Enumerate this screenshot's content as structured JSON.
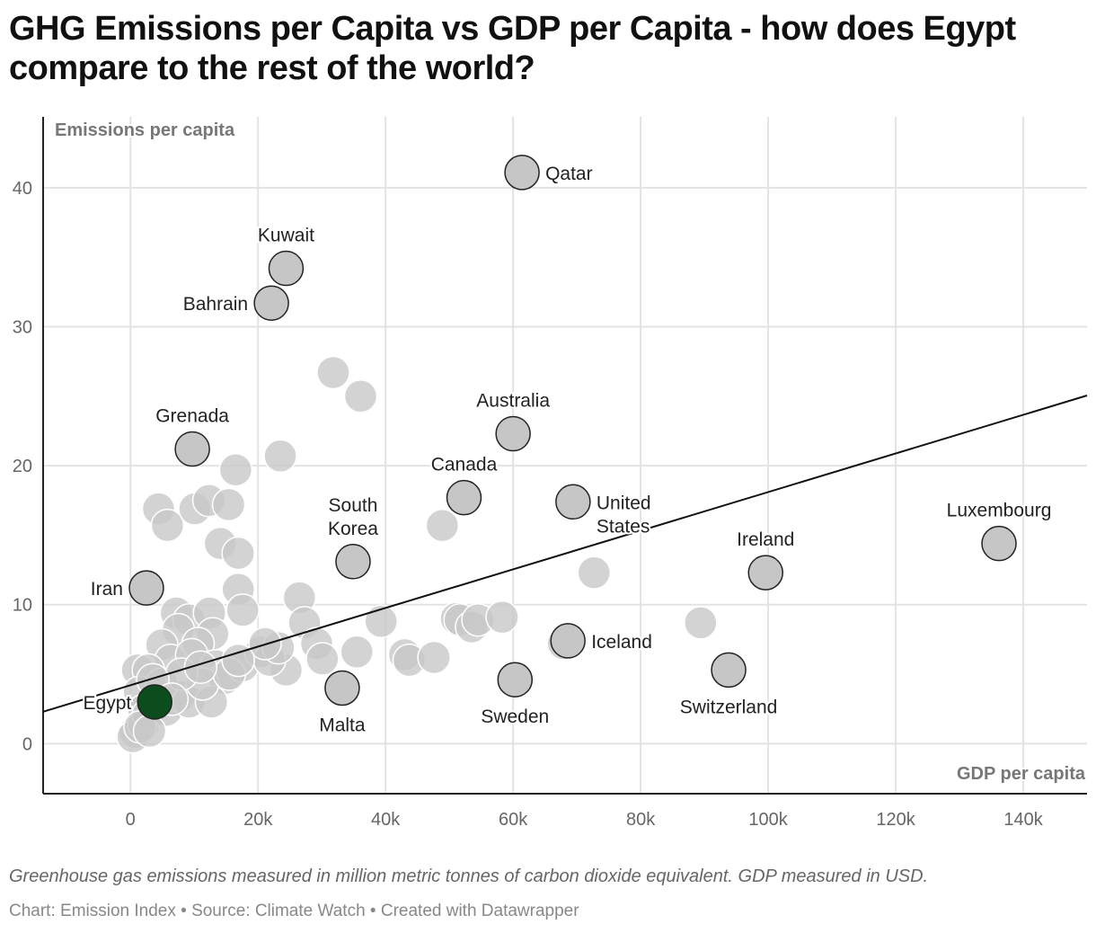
{
  "title": "GHG Emissions per Capita vs GDP per Capita - how does Egypt compare to the rest of the world?",
  "notes": "Greenhouse gas emissions measured in million metric tonnes of carbon dioxide equivalent. GDP measured in USD.",
  "byline": "Chart: Emission Index • Source: Climate Watch • Created with Datawrapper",
  "chart_data": {
    "type": "scatter",
    "xlabel": "GDP per capita",
    "ylabel": "Emissions per capita",
    "xlim": [
      -13700,
      150000
    ],
    "ylim": [
      -3.6,
      45.1
    ],
    "xticks": [
      0,
      20000,
      40000,
      60000,
      80000,
      100000,
      120000,
      140000
    ],
    "xtick_labels": [
      "0",
      "20k",
      "40k",
      "60k",
      "80k",
      "100k",
      "120k",
      "140k"
    ],
    "yticks": [
      0,
      10,
      20,
      30,
      40
    ],
    "ytick_labels": [
      "0",
      "10",
      "20",
      "30",
      "40"
    ],
    "grid": true,
    "trendline": {
      "x": [
        -13700,
        150000
      ],
      "y": [
        2.3,
        25.05
      ]
    },
    "colors": {
      "highlight": "#0b4d1c",
      "labeled": "#c6c6c6",
      "other": "#c8c8c8"
    },
    "labeled_points": [
      {
        "name": "Qatar",
        "x": 61400,
        "y": 41.1
      },
      {
        "name": "Kuwait",
        "x": 24400,
        "y": 34.2
      },
      {
        "name": "Bahrain",
        "x": 22100,
        "y": 31.7
      },
      {
        "name": "Grenada",
        "x": 9700,
        "y": 21.2
      },
      {
        "name": "Australia",
        "x": 60000,
        "y": 22.3
      },
      {
        "name": "Canada",
        "x": 52300,
        "y": 17.7
      },
      {
        "name": "United States",
        "x": 69400,
        "y": 17.4
      },
      {
        "name": "South Korea",
        "x": 34900,
        "y": 13.1
      },
      {
        "name": "Luxembourg",
        "x": 136200,
        "y": 14.4
      },
      {
        "name": "Ireland",
        "x": 99600,
        "y": 12.3
      },
      {
        "name": "Iran",
        "x": 2500,
        "y": 11.2
      },
      {
        "name": "Iceland",
        "x": 68600,
        "y": 7.4
      },
      {
        "name": "Switzerland",
        "x": 93800,
        "y": 5.3
      },
      {
        "name": "Sweden",
        "x": 60300,
        "y": 4.6
      },
      {
        "name": "Malta",
        "x": 33200,
        "y": 4.0
      },
      {
        "name": "Egypt",
        "x": 3800,
        "y": 3.0,
        "highlight": true
      }
    ],
    "other_points": [
      [
        31800,
        26.7
      ],
      [
        36100,
        25.0
      ],
      [
        23500,
        20.7
      ],
      [
        16500,
        19.7
      ],
      [
        4400,
        16.9
      ],
      [
        5800,
        15.7
      ],
      [
        10100,
        16.9
      ],
      [
        12300,
        17.5
      ],
      [
        15400,
        17.2
      ],
      [
        14100,
        14.4
      ],
      [
        16900,
        13.7
      ],
      [
        16900,
        11.1
      ],
      [
        17600,
        9.6
      ],
      [
        48900,
        15.7
      ],
      [
        72700,
        12.3
      ],
      [
        26500,
        10.5
      ],
      [
        27300,
        8.7
      ],
      [
        39300,
        8.8
      ],
      [
        29200,
        7.2
      ],
      [
        30100,
        6.1
      ],
      [
        35500,
        6.6
      ],
      [
        24400,
        5.3
      ],
      [
        43000,
        6.4
      ],
      [
        43700,
        6.0
      ],
      [
        47600,
        6.2
      ],
      [
        51100,
        9.0
      ],
      [
        51700,
        8.9
      ],
      [
        53500,
        8.4
      ],
      [
        54500,
        8.9
      ],
      [
        58300,
        9.1
      ],
      [
        67900,
        7.2
      ],
      [
        89400,
        8.7
      ],
      [
        7200,
        9.4
      ],
      [
        9200,
        8.9
      ],
      [
        12400,
        9.4
      ],
      [
        12900,
        7.9
      ],
      [
        7500,
        8.2
      ],
      [
        10600,
        7.2
      ],
      [
        4900,
        7.1
      ],
      [
        6300,
        6.0
      ],
      [
        9600,
        6.4
      ],
      [
        13400,
        5.6
      ],
      [
        14800,
        4.7
      ],
      [
        17600,
        5.6
      ],
      [
        20400,
        6.6
      ],
      [
        21800,
        6.0
      ],
      [
        23200,
        6.9
      ],
      [
        21100,
        7.2
      ],
      [
        1100,
        5.3
      ],
      [
        2800,
        5.3
      ],
      [
        1400,
        3.7
      ],
      [
        2100,
        2.4
      ],
      [
        700,
        0.8
      ],
      [
        400,
        0.5
      ],
      [
        2100,
        1.4
      ],
      [
        2800,
        2.1
      ],
      [
        5600,
        2.4
      ],
      [
        7700,
        3.4
      ],
      [
        9200,
        3.0
      ],
      [
        12700,
        3.0
      ],
      [
        11300,
        4.3
      ],
      [
        4900,
        4.3
      ],
      [
        15500,
        5.0
      ],
      [
        16900,
        6.0
      ],
      [
        8000,
        5.0
      ],
      [
        11000,
        5.5
      ],
      [
        3500,
        4.6
      ],
      [
        6500,
        3.2
      ],
      [
        1500,
        1.2
      ],
      [
        3000,
        0.9
      ]
    ]
  }
}
